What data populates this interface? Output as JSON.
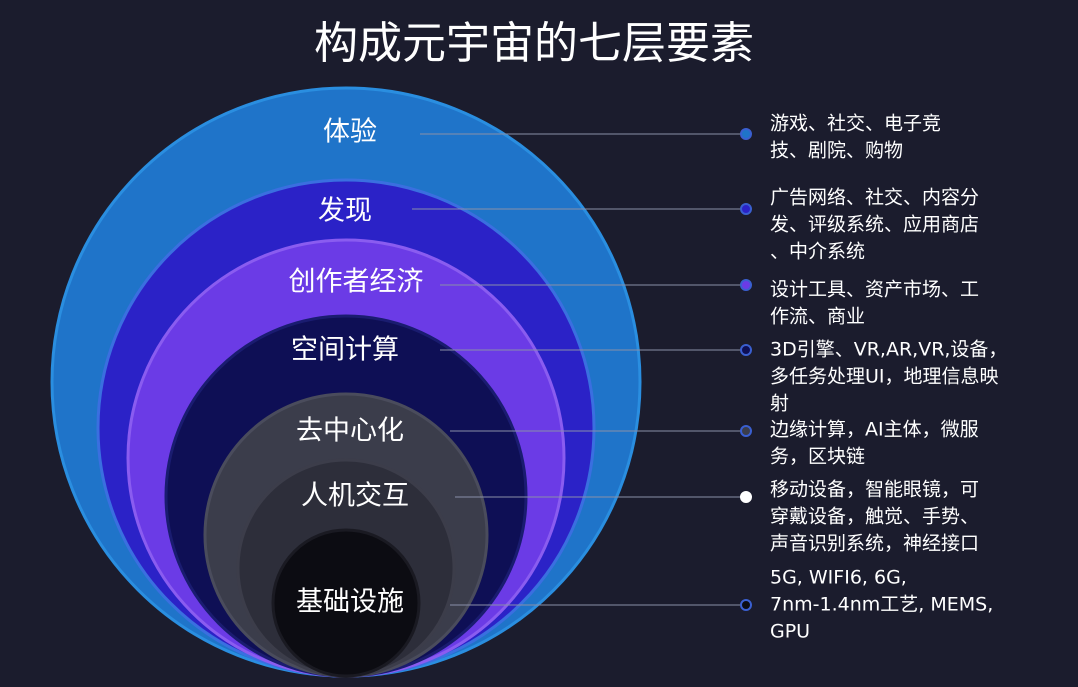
{
  "title": "构成元宇宙的七层要素",
  "layers": [
    {
      "name": "体验",
      "description": [
        "游戏、社交、电子竞",
        "技、剧院、购物"
      ]
    },
    {
      "name": "发现",
      "description": [
        "广告网络、社交、内容分",
        "发、评级系统、应用商店",
        "、中介系统"
      ]
    },
    {
      "name": "创作者经济",
      "description": [
        "设计工具、资产市场、工",
        "作流、商业"
      ]
    },
    {
      "name": "空间计算",
      "description": [
        "3D引擎、VR,AR,VR,设备，",
        "多任务处理UI，地理信息映",
        "射"
      ]
    },
    {
      "name": "去中心化",
      "description": [
        "边缘计算，AI主体，微服",
        "务，区块链"
      ]
    },
    {
      "name": "人机交互",
      "description": [
        "移动设备，智能眼镜，可",
        "穿戴设备，触觉、手势、",
        "声音识别系统，神经接口"
      ]
    },
    {
      "name": "基础设施",
      "description": [
        "5G, WIFI6, 6G,",
        "7nm-1.4nm工艺, MEMS,",
        "GPU"
      ]
    }
  ]
}
